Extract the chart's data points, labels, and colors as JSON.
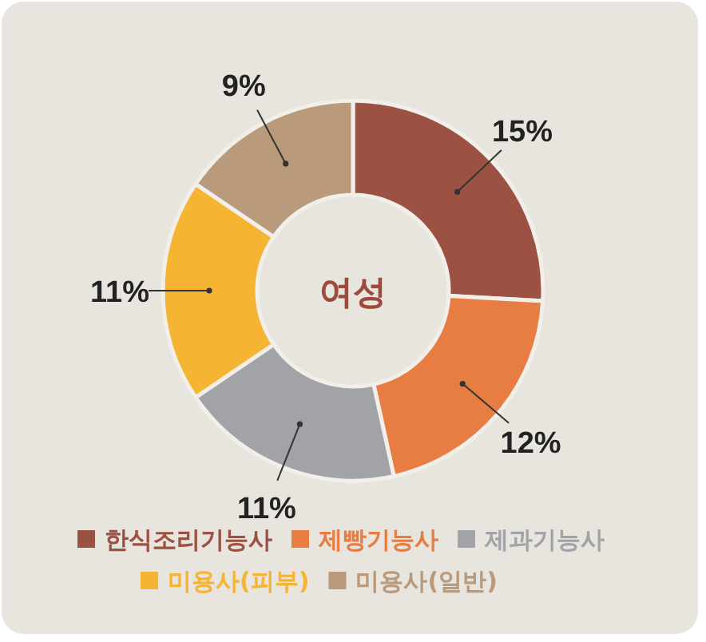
{
  "chart_data": {
    "type": "donut",
    "title": "여성",
    "categories": [
      "한식조리기능사",
      "제빵기능사",
      "제과기능사",
      "미용사(피부)",
      "미용사(일반)"
    ],
    "values": [
      15,
      12,
      11,
      11,
      9
    ],
    "value_labels": [
      "15%",
      "12%",
      "11%",
      "11%",
      "9%"
    ],
    "colors": [
      "#9b5242",
      "#e77d42",
      "#a1a3a6",
      "#f6b433",
      "#b99b7c"
    ],
    "legend": "bottom"
  }
}
